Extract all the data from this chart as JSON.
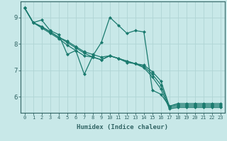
{
  "xlabel": "Humidex (Indice chaleur)",
  "ylabel": "",
  "bg_color": "#c8e8e8",
  "line_color": "#1a7a6e",
  "grid_color": "#b0d4d4",
  "axis_color": "#336666",
  "xlim": [
    -0.5,
    23.5
  ],
  "ylim": [
    5.4,
    9.6
  ],
  "xticks": [
    0,
    1,
    2,
    3,
    4,
    5,
    6,
    7,
    8,
    9,
    10,
    11,
    12,
    13,
    14,
    15,
    16,
    17,
    18,
    19,
    20,
    21,
    22,
    23
  ],
  "yticks": [
    6,
    7,
    8,
    9
  ],
  "series": [
    [
      9.35,
      8.8,
      8.9,
      8.5,
      8.35,
      7.6,
      7.75,
      6.85,
      7.55,
      8.05,
      9.0,
      8.7,
      8.4,
      8.5,
      8.45,
      6.25,
      6.1,
      5.65,
      5.75,
      5.75,
      5.75,
      5.75,
      5.75,
      5.75
    ],
    [
      9.35,
      8.8,
      8.65,
      8.45,
      8.25,
      8.1,
      7.9,
      7.7,
      7.6,
      7.5,
      7.55,
      7.45,
      7.35,
      7.25,
      7.2,
      6.95,
      6.6,
      5.65,
      5.7,
      5.7,
      5.7,
      5.7,
      5.7,
      5.7
    ],
    [
      9.35,
      8.8,
      8.65,
      8.45,
      8.25,
      8.05,
      7.85,
      7.65,
      7.5,
      7.4,
      7.55,
      7.45,
      7.35,
      7.25,
      7.15,
      6.85,
      6.45,
      5.6,
      5.65,
      5.65,
      5.65,
      5.65,
      5.65,
      5.65
    ],
    [
      9.35,
      8.8,
      8.6,
      8.4,
      8.2,
      7.95,
      7.75,
      7.55,
      7.5,
      7.4,
      7.55,
      7.45,
      7.3,
      7.25,
      7.1,
      6.75,
      6.3,
      5.55,
      5.6,
      5.6,
      5.6,
      5.6,
      5.6,
      5.6
    ]
  ]
}
